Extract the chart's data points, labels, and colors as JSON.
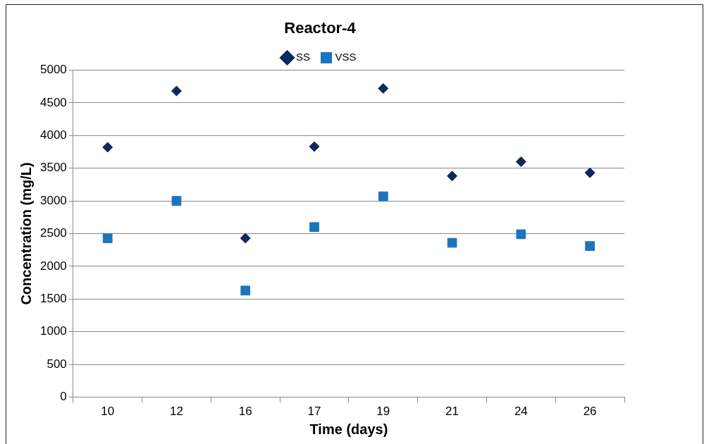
{
  "chart_data": {
    "type": "scatter",
    "title": "Reactor-4",
    "xlabel": "Time (days)",
    "ylabel": "Concentration (mg/L)",
    "categories": [
      "10",
      "12",
      "16",
      "17",
      "19",
      "21",
      "24",
      "26"
    ],
    "series": [
      {
        "name": "SS",
        "color": "#10275e",
        "marker": "diamond",
        "values": [
          3820,
          4680,
          2430,
          3830,
          4720,
          3380,
          3600,
          3430
        ]
      },
      {
        "name": "VSS",
        "color": "#1a74bf",
        "marker": "square",
        "values": [
          2430,
          3000,
          1630,
          2600,
          3070,
          2360,
          2490,
          2310
        ]
      }
    ],
    "ylim": [
      0,
      5000
    ],
    "yticks": [
      0,
      500,
      1000,
      1500,
      2000,
      2500,
      3000,
      3500,
      4000,
      4500,
      5000
    ],
    "grid": "y",
    "legend": "top"
  }
}
